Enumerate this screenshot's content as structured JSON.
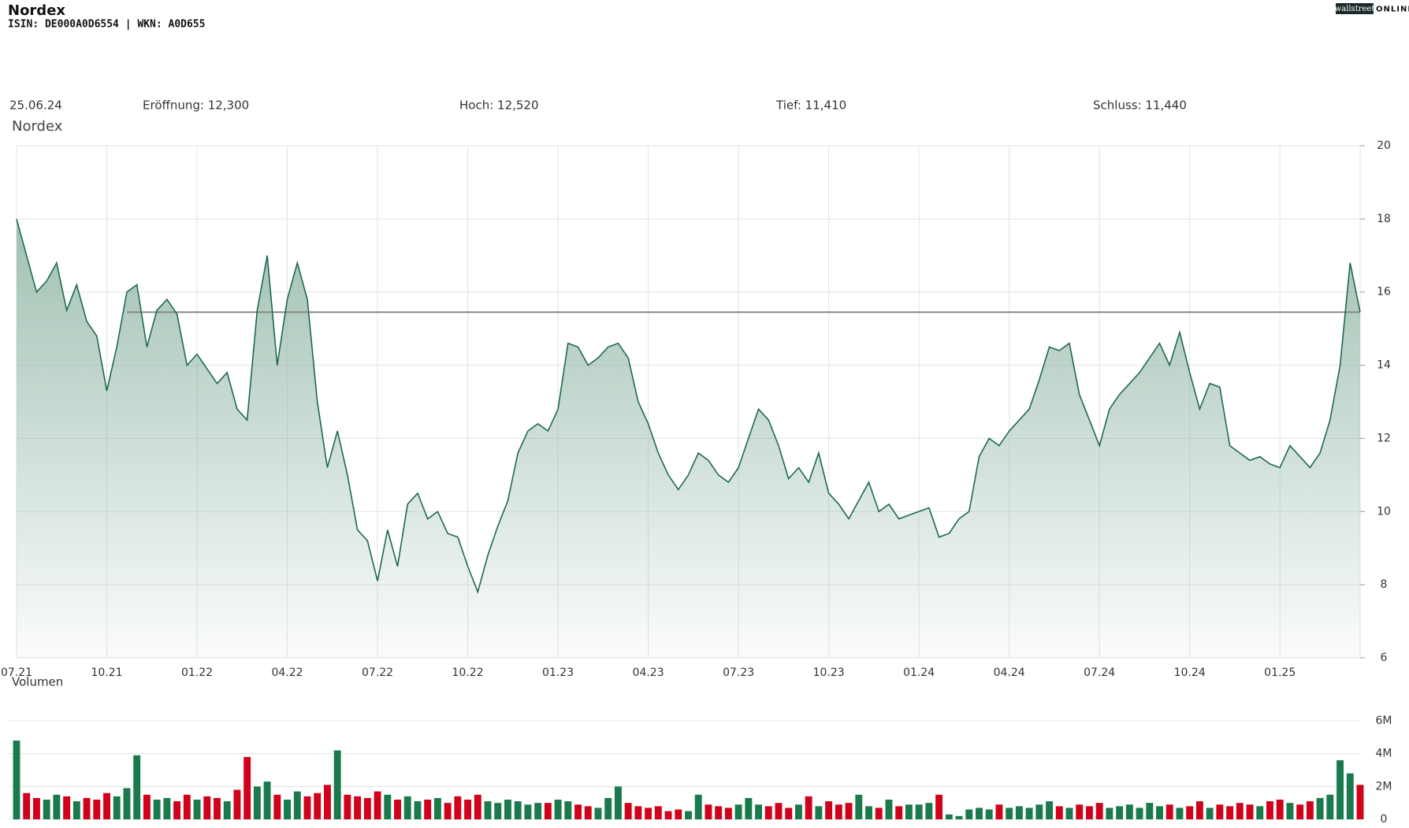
{
  "header": {
    "title": "Nordex",
    "subtitle": "ISIN: DE000A0D6554  | WKN: A0D655",
    "logo": "wallstreet",
    "logo_suffix": "ONLINE"
  },
  "info": [
    "25.06.24",
    "Eröffnung: 12,300",
    "Hoch: 12,520",
    "Tief: 11,410",
    "Schluss: 11,440"
  ],
  "chart_data": [
    {
      "type": "area",
      "title": "Nordex",
      "color": "#1d6a4c",
      "categories": [
        "07.21",
        null,
        null,
        null,
        null,
        null,
        null,
        null,
        null,
        "10.21",
        null,
        null,
        null,
        null,
        null,
        null,
        null,
        null,
        "01.22",
        null,
        null,
        null,
        null,
        null,
        null,
        null,
        null,
        "04.22",
        null,
        null,
        null,
        null,
        null,
        null,
        null,
        null,
        "07.22",
        null,
        null,
        null,
        null,
        null,
        null,
        null,
        null,
        "10.22",
        null,
        null,
        null,
        null,
        null,
        null,
        null,
        null,
        "01.23",
        null,
        null,
        null,
        null,
        null,
        null,
        null,
        null,
        "04.23",
        null,
        null,
        null,
        null,
        null,
        null,
        null,
        null,
        "07.23",
        null,
        null,
        null,
        null,
        null,
        null,
        null,
        null,
        "10.23",
        null,
        null,
        null,
        null,
        null,
        null,
        null,
        null,
        "01.24",
        null,
        null,
        null,
        null,
        null,
        null,
        null,
        null,
        "04.24",
        null,
        null,
        null,
        null,
        null,
        null,
        null,
        null,
        "07.24",
        null,
        null,
        null,
        null,
        null,
        null,
        null,
        null,
        "10.24",
        null,
        null,
        null,
        null,
        null,
        null,
        null,
        null,
        "01.25",
        null,
        null,
        null,
        null,
        null,
        null,
        null,
        null
      ],
      "values": [
        18.0,
        17.0,
        16.0,
        16.3,
        16.8,
        15.5,
        16.2,
        15.2,
        14.8,
        13.3,
        14.5,
        16.0,
        16.2,
        14.5,
        15.5,
        15.8,
        15.4,
        14.0,
        14.3,
        13.9,
        13.5,
        13.8,
        12.8,
        12.5,
        15.5,
        17.0,
        14.0,
        15.8,
        16.8,
        15.8,
        13.0,
        11.2,
        12.2,
        11.0,
        9.5,
        9.2,
        8.1,
        9.5,
        8.5,
        10.2,
        10.5,
        9.8,
        10.0,
        9.4,
        9.3,
        8.5,
        7.8,
        8.8,
        9.6,
        10.3,
        11.6,
        12.2,
        12.4,
        12.2,
        12.8,
        14.6,
        14.5,
        14.0,
        14.2,
        14.5,
        14.6,
        14.2,
        13.0,
        12.4,
        11.6,
        11.0,
        10.6,
        11.0,
        11.6,
        11.4,
        11.0,
        10.8,
        11.2,
        12.0,
        12.8,
        12.5,
        11.8,
        10.9,
        11.2,
        10.8,
        11.6,
        10.5,
        10.2,
        9.8,
        10.3,
        10.8,
        10.0,
        10.2,
        9.8,
        9.9,
        10.0,
        10.1,
        9.3,
        9.4,
        9.8,
        10.0,
        11.5,
        12.0,
        11.8,
        12.2,
        12.5,
        12.8,
        13.6,
        14.5,
        14.4,
        14.6,
        13.2,
        12.5,
        11.8,
        12.8,
        13.2,
        13.5,
        13.8,
        14.2,
        14.6,
        14.0,
        14.9,
        13.8,
        12.8,
        13.5,
        13.4,
        11.8,
        11.6,
        11.4,
        11.5,
        11.3,
        11.2,
        11.8,
        11.5,
        11.2,
        11.6,
        12.5,
        14.0,
        16.8,
        15.45
      ],
      "reference_line": 15.45,
      "ylim": [
        6,
        20
      ],
      "yticks": [
        6,
        8,
        10,
        12,
        14,
        16,
        18,
        20
      ],
      "grid": true
    },
    {
      "type": "bar",
      "title": "Volumen",
      "values": [
        4800000,
        1600000,
        1300000,
        1200000,
        1500000,
        1400000,
        1100000,
        1300000,
        1200000,
        1600000,
        1400000,
        1900000,
        3900000,
        1500000,
        1200000,
        1300000,
        1100000,
        1500000,
        1200000,
        1400000,
        1300000,
        1100000,
        1800000,
        3800000,
        2000000,
        2300000,
        1500000,
        1200000,
        1700000,
        1400000,
        1600000,
        2100000,
        4200000,
        1500000,
        1400000,
        1300000,
        1700000,
        1500000,
        1200000,
        1400000,
        1100000,
        1200000,
        1300000,
        1000000,
        1400000,
        1200000,
        1500000,
        1100000,
        1000000,
        1200000,
        1100000,
        900000,
        1000000,
        1000000,
        1200000,
        1100000,
        900000,
        800000,
        700000,
        1300000,
        2000000,
        1000000,
        800000,
        700000,
        800000,
        500000,
        600000,
        500000,
        1500000,
        900000,
        800000,
        700000,
        900000,
        1300000,
        900000,
        800000,
        1000000,
        700000,
        900000,
        1400000,
        800000,
        1100000,
        900000,
        1000000,
        1500000,
        800000,
        700000,
        1200000,
        800000,
        900000,
        900000,
        1000000,
        1500000,
        300000,
        200000,
        600000,
        700000,
        600000,
        900000,
        700000,
        800000,
        700000,
        900000,
        1100000,
        800000,
        700000,
        900000,
        800000,
        1000000,
        700000,
        800000,
        900000,
        700000,
        1000000,
        800000,
        900000,
        700000,
        800000,
        1100000,
        700000,
        900000,
        800000,
        1000000,
        900000,
        800000,
        1100000,
        1200000,
        1000000,
        900000,
        1100000,
        1300000,
        1500000,
        3600000,
        2800000,
        2100000
      ],
      "colors": [
        "#1a7a4c",
        "#d0021b",
        "#d0021b",
        "#1a7a4c",
        "#1a7a4c",
        "#d0021b",
        "#1a7a4c",
        "#d0021b",
        "#d0021b",
        "#d0021b",
        "#1a7a4c",
        "#1a7a4c",
        "#1a7a4c",
        "#d0021b",
        "#1a7a4c",
        "#1a7a4c",
        "#d0021b",
        "#d0021b",
        "#1a7a4c",
        "#d0021b",
        "#d0021b",
        "#1a7a4c",
        "#d0021b",
        "#d0021b",
        "#1a7a4c",
        "#1a7a4c",
        "#d0021b",
        "#1a7a4c",
        "#1a7a4c",
        "#d0021b",
        "#d0021b",
        "#d0021b",
        "#1a7a4c",
        "#d0021b",
        "#d0021b",
        "#d0021b",
        "#d0021b",
        "#1a7a4c",
        "#d0021b",
        "#1a7a4c",
        "#1a7a4c",
        "#d0021b",
        "#1a7a4c",
        "#d0021b",
        "#d0021b",
        "#d0021b",
        "#d0021b",
        "#1a7a4c",
        "#1a7a4c",
        "#1a7a4c",
        "#1a7a4c",
        "#1a7a4c",
        "#1a7a4c",
        "#d0021b",
        "#1a7a4c",
        "#1a7a4c",
        "#d0021b",
        "#d0021b",
        "#1a7a4c",
        "#1a7a4c",
        "#1a7a4c",
        "#d0021b",
        "#d0021b",
        "#d0021b",
        "#d0021b",
        "#d0021b",
        "#d0021b",
        "#1a7a4c",
        "#1a7a4c",
        "#d0021b",
        "#d0021b",
        "#d0021b",
        "#1a7a4c",
        "#1a7a4c",
        "#1a7a4c",
        "#d0021b",
        "#d0021b",
        "#d0021b",
        "#1a7a4c",
        "#d0021b",
        "#1a7a4c",
        "#d0021b",
        "#d0021b",
        "#d0021b",
        "#1a7a4c",
        "#1a7a4c",
        "#d0021b",
        "#1a7a4c",
        "#d0021b",
        "#1a7a4c",
        "#1a7a4c",
        "#1a7a4c",
        "#d0021b",
        "#1a7a4c",
        "#1a7a4c",
        "#1a7a4c",
        "#1a7a4c",
        "#1a7a4c",
        "#d0021b",
        "#1a7a4c",
        "#1a7a4c",
        "#1a7a4c",
        "#1a7a4c",
        "#1a7a4c",
        "#d0021b",
        "#1a7a4c",
        "#d0021b",
        "#d0021b",
        "#d0021b",
        "#1a7a4c",
        "#1a7a4c",
        "#1a7a4c",
        "#1a7a4c",
        "#1a7a4c",
        "#1a7a4c",
        "#d0021b",
        "#1a7a4c",
        "#d0021b",
        "#d0021b",
        "#1a7a4c",
        "#d0021b",
        "#d0021b",
        "#d0021b",
        "#d0021b",
        "#1a7a4c",
        "#d0021b",
        "#d0021b",
        "#1a7a4c",
        "#d0021b",
        "#d0021b",
        "#1a7a4c",
        "#1a7a4c",
        "#1a7a4c",
        "#1a7a4c",
        "#d0021b"
      ],
      "ylim": [
        0,
        6000000
      ],
      "yticks": [
        {
          "value": 0,
          "label": "0"
        },
        {
          "value": 2000000,
          "label": "2M"
        },
        {
          "value": 4000000,
          "label": "4M"
        },
        {
          "value": 6000000,
          "label": "6M"
        }
      ],
      "grid": true
    }
  ]
}
